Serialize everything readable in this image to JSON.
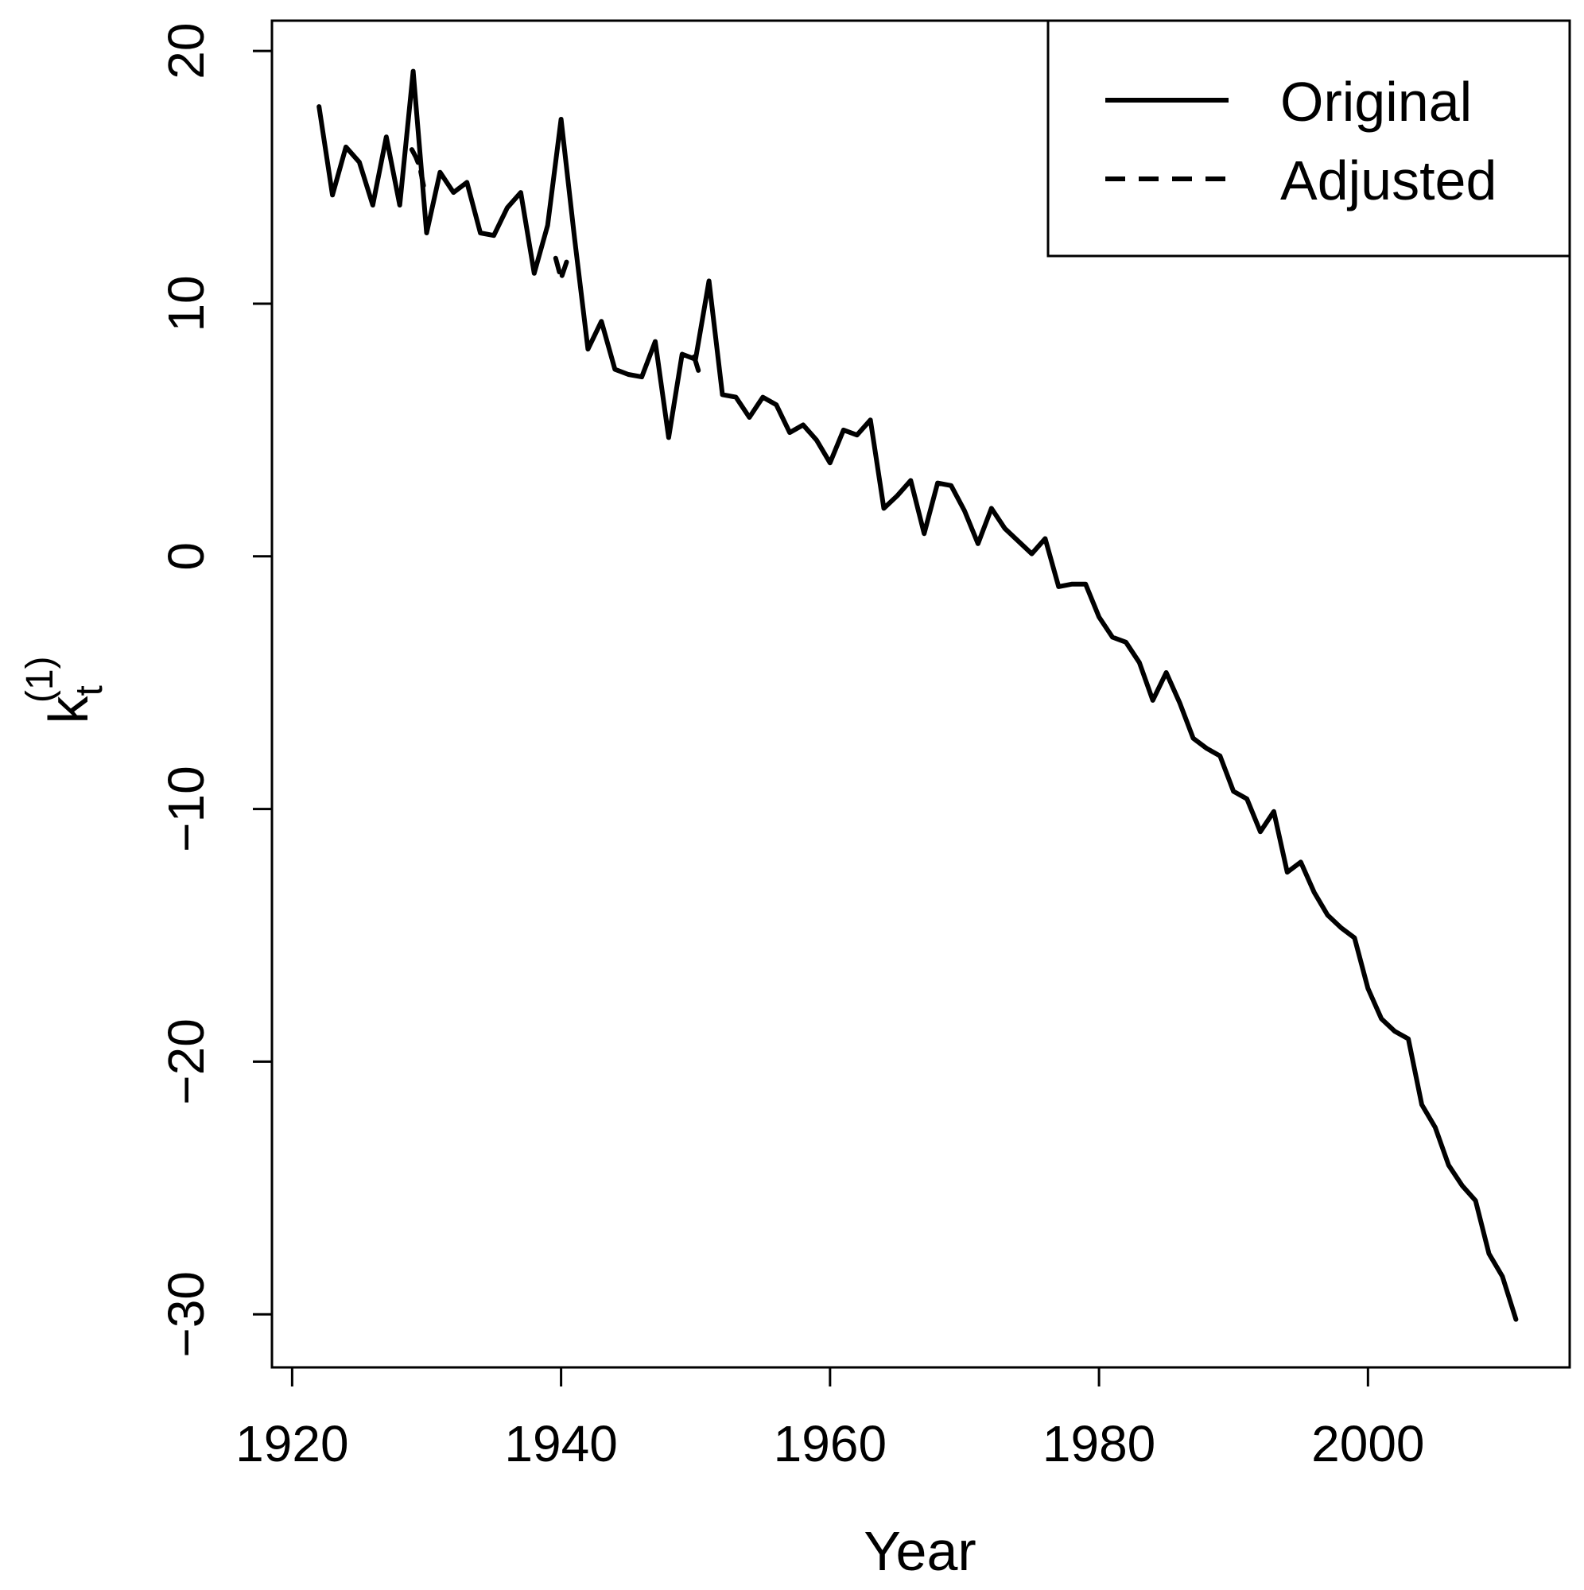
{
  "chart_data": {
    "type": "line",
    "title": "",
    "xlabel": "Year",
    "ylabel": {
      "base": "k",
      "subscript": "t",
      "superscript": "(1)"
    },
    "xlim": [
      1918.5,
      2015
    ],
    "ylim": [
      -32.1,
      21.2
    ],
    "x_ticks": [
      1920,
      1940,
      1960,
      1980,
      2000
    ],
    "x_tick_labels": [
      "1920",
      "1940",
      "1960",
      "1980",
      "2000"
    ],
    "y_ticks": [
      20,
      10,
      0,
      -10,
      -20,
      -30
    ],
    "y_tick_labels": [
      "20",
      "10",
      "0",
      "−10",
      "−20",
      "−30"
    ],
    "grid": false,
    "legend": {
      "position": "top-right"
    },
    "series": [
      {
        "name": "Original",
        "line_style": "solid",
        "x": [
          1922,
          1923,
          1924,
          1925,
          1926,
          1927,
          1928,
          1929,
          1930,
          1931,
          1932,
          1933,
          1934,
          1935,
          1936,
          1937,
          1938,
          1939,
          1940,
          1941,
          1942,
          1943,
          1944,
          1945,
          1946,
          1947,
          1948,
          1949,
          1950,
          1951,
          1952,
          1953,
          1954,
          1955,
          1956,
          1957,
          1958,
          1959,
          1960,
          1961,
          1962,
          1963,
          1964,
          1965,
          1966,
          1967,
          1968,
          1969,
          1970,
          1971,
          1972,
          1973,
          1974,
          1975,
          1976,
          1977,
          1978,
          1979,
          1980,
          1981,
          1982,
          1983,
          1984,
          1985,
          1986,
          1987,
          1988,
          1989,
          1990,
          1991,
          1992,
          1993,
          1994,
          1995,
          1996,
          1997,
          1998,
          1999,
          2000,
          2001,
          2002,
          2003,
          2004,
          2005,
          2006,
          2007,
          2008,
          2009,
          2010,
          2011
        ],
        "values": [
          17.8,
          14.3,
          16.2,
          15.6,
          13.9,
          16.6,
          13.9,
          19.2,
          12.8,
          15.2,
          14.4,
          14.8,
          12.8,
          12.7,
          13.8,
          14.4,
          11.2,
          13.1,
          17.3,
          12.6,
          8.2,
          9.3,
          7.4,
          7.2,
          7.1,
          8.5,
          4.7,
          8.0,
          7.8,
          10.9,
          6.4,
          6.3,
          5.5,
          6.3,
          6.0,
          4.9,
          5.2,
          4.6,
          3.7,
          5.0,
          4.8,
          5.4,
          1.9,
          2.4,
          3.0,
          0.9,
          2.9,
          2.8,
          1.8,
          0.5,
          1.9,
          1.1,
          0.6,
          0.1,
          0.7,
          -1.2,
          -1.1,
          -1.1,
          -2.4,
          -3.2,
          -3.4,
          -4.2,
          -5.7,
          -4.6,
          -5.8,
          -7.2,
          -7.6,
          -7.9,
          -9.3,
          -9.6,
          -10.9,
          -10.1,
          -12.5,
          -12.1,
          -13.3,
          -14.2,
          -14.7,
          -15.1,
          -17.1,
          -18.3,
          -18.8,
          -19.1,
          -21.7,
          -22.6,
          -24.1,
          -24.9,
          -25.5,
          -27.6,
          -28.5,
          -30.2
        ]
      },
      {
        "name": "Adjusted",
        "line_style": "dashed",
        "segments": [
          {
            "x": [
              1928.9,
              1929.2,
              1929.5,
              1929.8
            ],
            "values": [
              16.1,
              15.8,
              15.4,
              14.6
            ]
          },
          {
            "x": [
              1939.6,
              1940.0,
              1940.5
            ],
            "values": [
              11.8,
              11.0,
              11.8
            ]
          },
          {
            "x": [
              1949.9,
              1950.3
            ],
            "values": [
              7.9,
              7.2
            ]
          }
        ]
      }
    ]
  }
}
